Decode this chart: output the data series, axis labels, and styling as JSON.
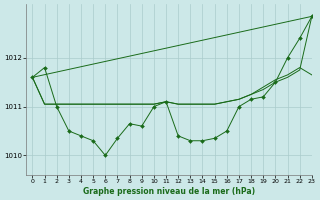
{
  "bg_color": "#cce8e8",
  "grid_color": "#aacccc",
  "line_color": "#1a6b1a",
  "title": "Graphe pression niveau de la mer (hPa)",
  "xlim": [
    -0.5,
    23
  ],
  "ylim": [
    1009.6,
    1013.1
  ],
  "yticks": [
    1010,
    1011,
    1012
  ],
  "xticks": [
    0,
    1,
    2,
    3,
    4,
    5,
    6,
    7,
    8,
    9,
    10,
    11,
    12,
    13,
    14,
    15,
    16,
    17,
    18,
    19,
    20,
    21,
    22,
    23
  ],
  "series1": [
    1011.6,
    1011.8,
    1011.0,
    1010.5,
    1010.4,
    1010.3,
    1010.0,
    1010.35,
    1010.65,
    1010.6,
    1011.0,
    1011.1,
    1010.4,
    1010.3,
    1010.3,
    1010.35,
    1010.5,
    1011.0,
    1011.15,
    1011.2,
    1011.5,
    1012.0,
    1012.4,
    1012.85
  ],
  "series2_x": [
    0,
    23
  ],
  "series2_y": [
    1011.6,
    1012.85
  ],
  "series3": [
    1011.6,
    1011.05,
    1011.05,
    1011.05,
    1011.05,
    1011.05,
    1011.05,
    1011.05,
    1011.05,
    1011.05,
    1011.05,
    1011.1,
    1011.05,
    1011.05,
    1011.05,
    1011.05,
    1011.1,
    1011.15,
    1011.25,
    1011.35,
    1011.5,
    1011.6,
    1011.75,
    1012.85
  ],
  "series4": [
    1011.6,
    1011.05,
    1011.05,
    1011.05,
    1011.05,
    1011.05,
    1011.05,
    1011.05,
    1011.05,
    1011.05,
    1011.05,
    1011.1,
    1011.05,
    1011.05,
    1011.05,
    1011.05,
    1011.1,
    1011.15,
    1011.25,
    1011.4,
    1011.55,
    1011.65,
    1011.8,
    1011.65
  ]
}
